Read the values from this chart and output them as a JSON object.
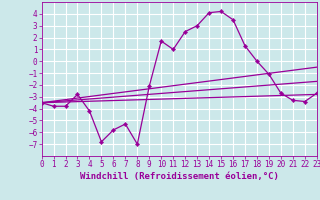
{
  "x_data": [
    0,
    1,
    2,
    3,
    4,
    5,
    6,
    7,
    8,
    9,
    10,
    11,
    12,
    13,
    14,
    15,
    16,
    17,
    18,
    19,
    20,
    21,
    22,
    23
  ],
  "line1": [
    -3.5,
    -3.8,
    -3.8,
    -2.8,
    -4.2,
    -6.8,
    -5.8,
    -5.3,
    -7.0,
    -2.1,
    1.7,
    1.0,
    2.5,
    3.0,
    4.1,
    4.2,
    3.5,
    1.3,
    0.0,
    -1.1,
    -2.7,
    -3.3,
    -3.4,
    -2.7
  ],
  "reg_lines": [
    {
      "x0": 0,
      "y0": -3.5,
      "x1": 23,
      "y1": -0.5
    },
    {
      "x0": 0,
      "y0": -3.5,
      "x1": 23,
      "y1": -1.7
    },
    {
      "x0": 0,
      "y0": -3.5,
      "x1": 23,
      "y1": -2.8
    }
  ],
  "bg_color": "#cce8ea",
  "grid_color": "#ffffff",
  "line_color": "#990099",
  "xlabel": "Windchill (Refroidissement éolien,°C)",
  "ylim": [
    -8,
    5
  ],
  "xlim": [
    0,
    23
  ],
  "yticks": [
    -7,
    -6,
    -5,
    -4,
    -3,
    -2,
    -1,
    0,
    1,
    2,
    3,
    4
  ],
  "xticks": [
    0,
    1,
    2,
    3,
    4,
    5,
    6,
    7,
    8,
    9,
    10,
    11,
    12,
    13,
    14,
    15,
    16,
    17,
    18,
    19,
    20,
    21,
    22,
    23
  ],
  "tick_fontsize": 5.5,
  "label_fontsize": 6.5
}
